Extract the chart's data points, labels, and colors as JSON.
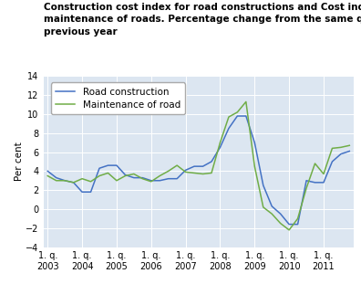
{
  "title_line1": "Construction cost index for road constructions and Cost index for",
  "title_line2": "maintenance of roads. Percentage change from the same quarter the",
  "title_line3": "previous year",
  "ylabel": "Per cent",
  "ylim": [
    -4,
    14
  ],
  "yticks": [
    -4,
    -2,
    0,
    2,
    4,
    6,
    8,
    10,
    12,
    14
  ],
  "xtick_positions": [
    0,
    4,
    8,
    12,
    16,
    20,
    24,
    28,
    32
  ],
  "xtick_labels": [
    "1. q.\n2003",
    "1. q.\n2004",
    "1. q.\n2005",
    "1. q.\n2006",
    "1. q.\n2007",
    "1. q.\n2008",
    "1. q.\n2009",
    "1. q.\n2010",
    "1. q.\n2011"
  ],
  "road_construction": [
    4.0,
    3.3,
    3.0,
    2.8,
    1.8,
    1.8,
    4.3,
    4.6,
    4.6,
    3.6,
    3.3,
    3.3,
    3.0,
    3.0,
    3.2,
    3.2,
    4.1,
    4.5,
    4.5,
    5.0,
    6.5,
    8.5,
    9.8,
    9.8,
    7.0,
    2.5,
    0.3,
    -0.5,
    -1.6,
    -1.6,
    3.0,
    2.8,
    2.8,
    5.0,
    5.8,
    6.1
  ],
  "maintenance_of_road": [
    3.5,
    3.0,
    3.0,
    2.8,
    3.2,
    2.9,
    3.5,
    3.8,
    3.0,
    3.5,
    3.7,
    3.2,
    2.9,
    3.5,
    4.0,
    4.6,
    3.9,
    3.8,
    3.7,
    3.8,
    7.0,
    9.7,
    10.2,
    11.3,
    4.5,
    0.2,
    -0.5,
    -1.5,
    -2.2,
    -1.0,
    2.2,
    4.8,
    3.7,
    6.4,
    6.5,
    6.7
  ],
  "road_color": "#4472c4",
  "maint_color": "#70ad47",
  "bg_color": "#dce6f1",
  "grid_color": "#ffffff",
  "title_fontsize": 7.5,
  "label_fontsize": 7.5,
  "tick_fontsize": 7.0,
  "legend_fontsize": 7.5
}
